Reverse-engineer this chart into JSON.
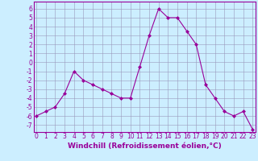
{
  "x": [
    0,
    1,
    2,
    3,
    4,
    5,
    6,
    7,
    8,
    9,
    10,
    11,
    12,
    13,
    14,
    15,
    16,
    17,
    18,
    19,
    20,
    21,
    22,
    23
  ],
  "y": [
    -6.0,
    -5.5,
    -5.0,
    -3.5,
    -1.0,
    -2.0,
    -2.5,
    -3.0,
    -3.5,
    -4.0,
    -4.0,
    -0.5,
    3.0,
    6.0,
    5.0,
    5.0,
    3.5,
    2.0,
    -2.5,
    -4.0,
    -5.5,
    -6.0,
    -5.5,
    -7.5
  ],
  "line_color": "#990099",
  "marker": "D",
  "marker_size": 2,
  "bg_color": "#cceeff",
  "grid_color": "#9999bb",
  "ylabel_ticks": [
    6,
    5,
    4,
    3,
    2,
    1,
    0,
    -1,
    -2,
    -3,
    -4,
    -5,
    -6,
    -7
  ],
  "ylim": [
    -7.8,
    6.8
  ],
  "xlim": [
    -0.3,
    23.3
  ],
  "xlabel": "Windchill (Refroidissement éolien,°C)",
  "xticks": [
    0,
    1,
    2,
    3,
    4,
    5,
    6,
    7,
    8,
    9,
    10,
    11,
    12,
    13,
    14,
    15,
    16,
    17,
    18,
    19,
    20,
    21,
    22,
    23
  ],
  "tick_fontsize": 5.5,
  "xlabel_fontsize": 6.5
}
